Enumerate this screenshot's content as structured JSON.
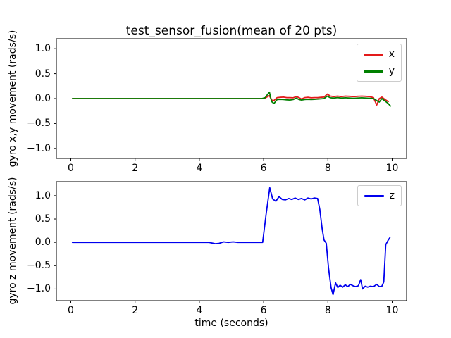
{
  "figure": {
    "background": "#ffffff",
    "spine_color": "#000000",
    "tick_color": "#000000"
  },
  "chart_data": [
    {
      "type": "line",
      "title": "test_sensor_fusion(mean of 20 pts)",
      "xlabel": "",
      "ylabel": "gyro x,y movement (rads/s)",
      "xlim": [
        -0.45,
        10.45
      ],
      "ylim": [
        -1.2,
        1.2
      ],
      "grid": false,
      "legend_position": "upper right",
      "xticks": [
        0,
        2,
        4,
        6,
        8,
        10
      ],
      "xticklabels": [
        "0",
        "2",
        "4",
        "6",
        "8",
        "10"
      ],
      "yticks": [
        1.0,
        0.5,
        0.0,
        -0.5,
        -1.0
      ],
      "yticklabels": [
        "1.0",
        "0.5",
        "0.0",
        "−0.5",
        "−1.0"
      ],
      "series": [
        {
          "name": "x",
          "color": "#e31a1a",
          "x": [
            0.05,
            0.3,
            0.6,
            0.9,
            1.2,
            1.5,
            1.8,
            2.1,
            2.4,
            2.7,
            3.0,
            3.3,
            3.6,
            3.9,
            4.2,
            4.5,
            4.8,
            5.0,
            5.2,
            5.4,
            5.6,
            5.8,
            5.95,
            6.05,
            6.12,
            6.18,
            6.25,
            6.32,
            6.42,
            6.52,
            6.62,
            6.72,
            6.82,
            6.92,
            7.02,
            7.1,
            7.18,
            7.28,
            7.38,
            7.48,
            7.58,
            7.68,
            7.78,
            7.88,
            7.98,
            8.08,
            8.18,
            8.3,
            8.42,
            8.55,
            8.68,
            8.8,
            8.92,
            9.05,
            9.18,
            9.3,
            9.42,
            9.52,
            9.6,
            9.68,
            9.78,
            9.88
          ],
          "y": [
            0,
            0,
            0,
            0,
            0,
            0,
            0,
            0,
            0,
            0,
            0,
            0,
            0,
            0,
            0,
            0,
            0,
            0,
            0,
            0,
            0,
            0,
            0,
            0.01,
            0.04,
            0.06,
            -0.03,
            -0.04,
            0.02,
            0.025,
            0.03,
            0.02,
            0.02,
            0.015,
            0.04,
            0.02,
            -0.01,
            0.02,
            0.025,
            0.015,
            0.02,
            0.02,
            0.025,
            0.03,
            0.09,
            0.05,
            0.04,
            0.05,
            0.04,
            0.05,
            0.045,
            0.04,
            0.045,
            0.05,
            0.045,
            0.04,
            0.02,
            -0.13,
            0.0,
            0.03,
            -0.02,
            -0.06
          ]
        },
        {
          "name": "y",
          "color": "#008000",
          "x": [
            0.05,
            0.3,
            0.6,
            0.9,
            1.2,
            1.5,
            1.8,
            2.1,
            2.4,
            2.7,
            3.0,
            3.3,
            3.6,
            3.9,
            4.2,
            4.5,
            4.8,
            5.0,
            5.2,
            5.4,
            5.6,
            5.8,
            5.95,
            6.05,
            6.12,
            6.18,
            6.25,
            6.32,
            6.42,
            6.52,
            6.62,
            6.72,
            6.82,
            6.92,
            7.02,
            7.1,
            7.18,
            7.28,
            7.38,
            7.48,
            7.58,
            7.68,
            7.78,
            7.88,
            7.98,
            8.08,
            8.18,
            8.3,
            8.42,
            8.55,
            8.68,
            8.8,
            8.92,
            9.05,
            9.18,
            9.3,
            9.42,
            9.52,
            9.6,
            9.68,
            9.78,
            9.88,
            9.95
          ],
          "y": [
            0,
            0,
            0,
            0,
            0,
            0,
            0,
            0,
            0,
            0,
            0,
            0,
            0,
            0,
            0,
            0,
            0,
            0,
            0,
            0,
            0,
            0,
            0,
            0.02,
            0.08,
            0.13,
            -0.06,
            -0.1,
            -0.02,
            -0.015,
            -0.02,
            -0.025,
            -0.03,
            -0.02,
            0.01,
            -0.02,
            -0.03,
            -0.02,
            -0.015,
            -0.02,
            -0.015,
            -0.01,
            -0.005,
            0.0,
            0.05,
            0.015,
            0.01,
            0.02,
            0.01,
            0.015,
            0.01,
            0.005,
            0.01,
            0.015,
            0.01,
            0.005,
            0.0,
            -0.04,
            -0.07,
            0.0,
            -0.05,
            -0.1,
            -0.15
          ]
        }
      ]
    },
    {
      "type": "line",
      "title": "",
      "xlabel": "time (seconds)",
      "ylabel": "gyro z movement (rads/s)",
      "xlim": [
        -0.45,
        10.45
      ],
      "ylim": [
        -1.25,
        1.3
      ],
      "grid": false,
      "legend_position": "upper right",
      "xticks": [
        0,
        2,
        4,
        6,
        8,
        10
      ],
      "xticklabels": [
        "0",
        "2",
        "4",
        "6",
        "8",
        "10"
      ],
      "yticks": [
        1.0,
        0.5,
        0.0,
        -0.5,
        -1.0
      ],
      "yticklabels": [
        "1.0",
        "0.5",
        "0.0",
        "−0.5",
        "−1.0"
      ],
      "series": [
        {
          "name": "z",
          "color": "#0000ee",
          "x": [
            0.05,
            0.4,
            0.8,
            1.2,
            1.6,
            2.0,
            2.4,
            2.8,
            3.2,
            3.6,
            4.0,
            4.3,
            4.5,
            4.62,
            4.75,
            4.9,
            5.05,
            5.2,
            5.4,
            5.6,
            5.8,
            5.97,
            6.08,
            6.19,
            6.28,
            6.38,
            6.48,
            6.58,
            6.68,
            6.78,
            6.88,
            6.98,
            7.08,
            7.18,
            7.28,
            7.38,
            7.48,
            7.58,
            7.68,
            7.75,
            7.82,
            7.88,
            7.95,
            8.02,
            8.1,
            8.16,
            8.24,
            8.31,
            8.38,
            8.46,
            8.54,
            8.62,
            8.7,
            8.78,
            8.86,
            8.95,
            9.02,
            9.08,
            9.16,
            9.24,
            9.32,
            9.42,
            9.52,
            9.6,
            9.68,
            9.74,
            9.8,
            9.88,
            9.93
          ],
          "y": [
            0,
            0,
            0,
            0,
            0,
            0,
            0,
            0,
            0,
            0,
            0,
            0,
            -0.03,
            -0.02,
            0.01,
            0,
            0.01,
            0,
            0,
            0,
            0,
            0,
            0.61,
            1.17,
            0.93,
            0.88,
            0.98,
            0.92,
            0.91,
            0.94,
            0.92,
            0.95,
            0.92,
            0.94,
            0.91,
            0.95,
            0.93,
            0.95,
            0.94,
            0.7,
            0.3,
            0.05,
            -0.02,
            -0.55,
            -0.97,
            -1.12,
            -0.87,
            -0.97,
            -0.92,
            -0.96,
            -0.91,
            -0.95,
            -0.9,
            -0.93,
            -0.95,
            -0.93,
            -0.8,
            -1.0,
            -0.94,
            -0.96,
            -0.94,
            -0.95,
            -0.9,
            -0.95,
            -0.94,
            -0.85,
            -0.05,
            0.05,
            0.1
          ]
        }
      ]
    }
  ]
}
